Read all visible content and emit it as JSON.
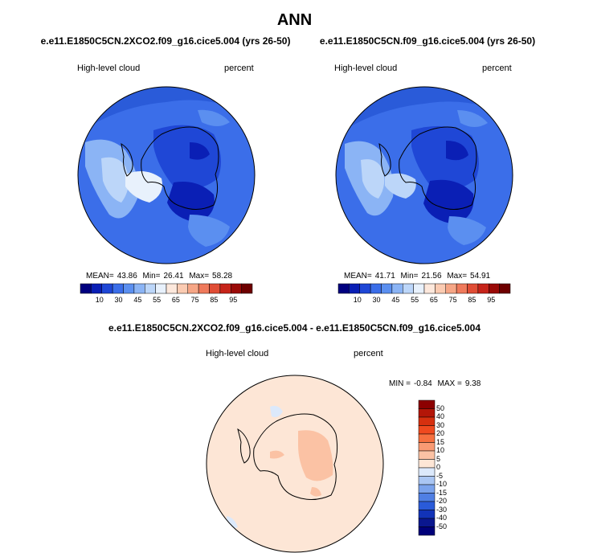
{
  "page_title": "ANN",
  "panels": [
    {
      "case_title": "e.e11.E1850C5CN.2XCO2.f09_g16.cice5.004 (yrs 26-50)",
      "field_label": "High-level cloud",
      "units_label": "percent",
      "stats": {
        "mean_label": "MEAN=",
        "mean": "43.86",
        "min_label": "Min=",
        "min": "26.41",
        "max_label": "Max=",
        "max": "58.28"
      }
    },
    {
      "case_title": "e.e11.E1850C5CN.f09_g16.cice5.004 (yrs 26-50)",
      "field_label": "High-level cloud",
      "units_label": "percent",
      "stats": {
        "mean_label": "MEAN=",
        "mean": "41.71",
        "min_label": "Min=",
        "min": "21.56",
        "max_label": "Max=",
        "max": "54.91"
      }
    }
  ],
  "difference_panel": {
    "case_title": "e.e11.E1850C5CN.2XCO2.f09_g16.cice5.004 - e.e11.E1850C5CN.f09_g16.cice5.004",
    "field_label": "High-level cloud",
    "units_label": "percent",
    "stats": {
      "min_label": "MIN =",
      "min": "-0.84",
      "max_label": "MAX =",
      "max": "9.38"
    }
  },
  "chart_data": [
    {
      "type": "heatmap",
      "projection": "south polar stereographic",
      "colorbar_orientation": "horizontal",
      "colorbar_labels": [
        "10",
        "30",
        "45",
        "55",
        "65",
        "75",
        "85",
        "95"
      ],
      "colorbar_colors": [
        "#00007f",
        "#0a1fb5",
        "#1f47d6",
        "#3b6ee9",
        "#5b8ff0",
        "#8bb4f5",
        "#bcd6f9",
        "#e8f1fc",
        "#fde8dc",
        "#fbcbb2",
        "#f6a686",
        "#ef7a5c",
        "#e04d35",
        "#c6241a",
        "#9a0a07",
        "#6e0000"
      ]
    },
    {
      "type": "heatmap",
      "projection": "south polar stereographic",
      "colorbar_orientation": "horizontal",
      "colorbar_labels": [
        "10",
        "30",
        "45",
        "55",
        "65",
        "75",
        "85",
        "95"
      ],
      "colorbar_colors": [
        "#00007f",
        "#0a1fb5",
        "#1f47d6",
        "#3b6ee9",
        "#5b8ff0",
        "#8bb4f5",
        "#bcd6f9",
        "#e8f1fc",
        "#fde8dc",
        "#fbcbb2",
        "#f6a686",
        "#ef7a5c",
        "#e04d35",
        "#c6241a",
        "#9a0a07",
        "#6e0000"
      ]
    },
    {
      "type": "heatmap",
      "projection": "south polar stereographic",
      "colorbar_orientation": "vertical",
      "colorbar_labels": [
        "50",
        "40",
        "30",
        "20",
        "15",
        "10",
        "5",
        "0",
        "-5",
        "-10",
        "-15",
        "-20",
        "-30",
        "-40",
        "-50"
      ],
      "colorbar_colors": [
        "#8c0000",
        "#b31608",
        "#d6300f",
        "#ef4a1f",
        "#f6703f",
        "#f99a73",
        "#fbc2a4",
        "#fde6d6",
        "#dce9fb",
        "#aac6f3",
        "#7ba3ec",
        "#4f7fe4",
        "#2a5bd9",
        "#1233b8",
        "#0a178f",
        "#00007a"
      ]
    }
  ]
}
